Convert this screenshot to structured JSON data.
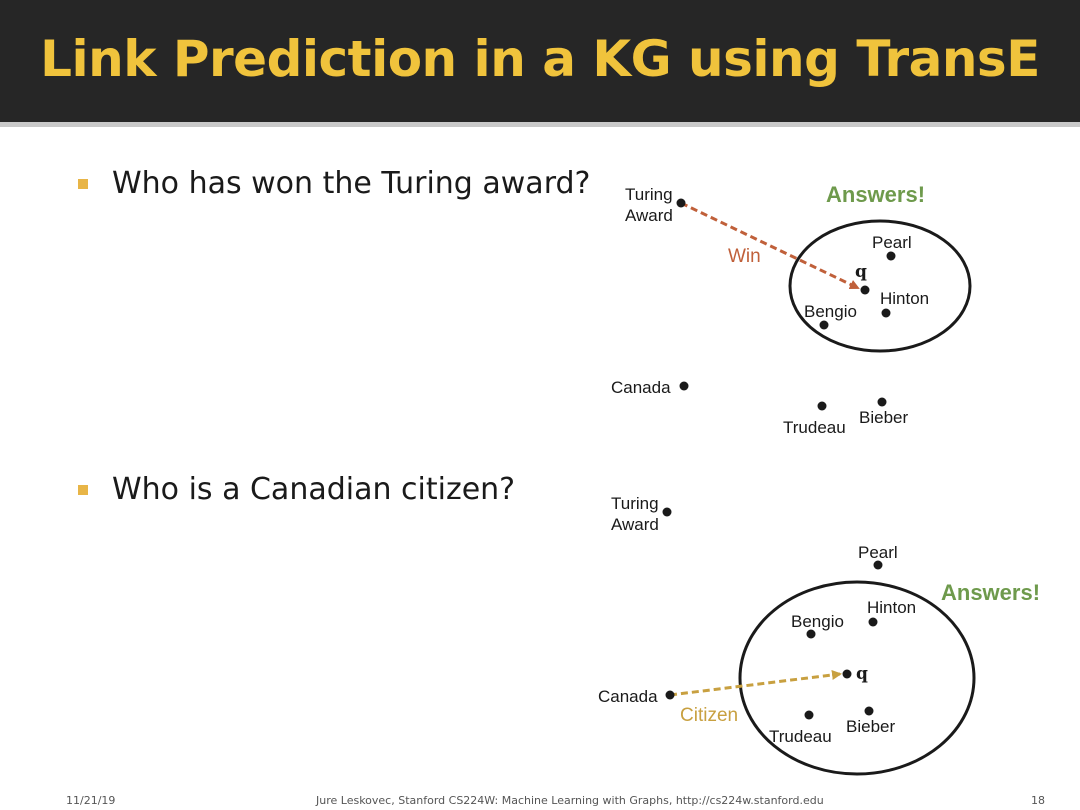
{
  "slide": {
    "title": "Link Prediction in a KG using TransE",
    "footer": {
      "date": "11/21/19",
      "credit": "Jure Leskovec, Stanford CS224W: Machine Learning with Graphs, http://cs224w.stanford.edu",
      "page": "18"
    }
  },
  "bullets": [
    {
      "text": "Who has won the Turing award?"
    },
    {
      "text": "Who is a Canadian citizen?"
    }
  ],
  "diagram1": {
    "answers_label": "Answers!",
    "relation_label": "Win",
    "query_label": "q",
    "nodes": {
      "turing_award": [
        "Turing",
        "Award"
      ],
      "pearl": "Pearl",
      "hinton": "Hinton",
      "bengio": "Bengio",
      "canada": "Canada",
      "trudeau": "Trudeau",
      "bieber": "Bieber"
    },
    "arrow_color": "#c0603a"
  },
  "diagram2": {
    "answers_label": "Answers!",
    "relation_label": "Citizen",
    "query_label": "q",
    "nodes": {
      "turing_award": [
        "Turing",
        "Award"
      ],
      "pearl": "Pearl",
      "hinton": "Hinton",
      "bengio": "Bengio",
      "canada": "Canada",
      "trudeau": "Trudeau",
      "bieber": "Bieber"
    },
    "arrow_color": "#c8a040"
  },
  "colors": {
    "title": "#f0c33c",
    "title_bar": "#262626",
    "answers": "#6e9a4c",
    "bullet_marker": "#e8b547"
  }
}
